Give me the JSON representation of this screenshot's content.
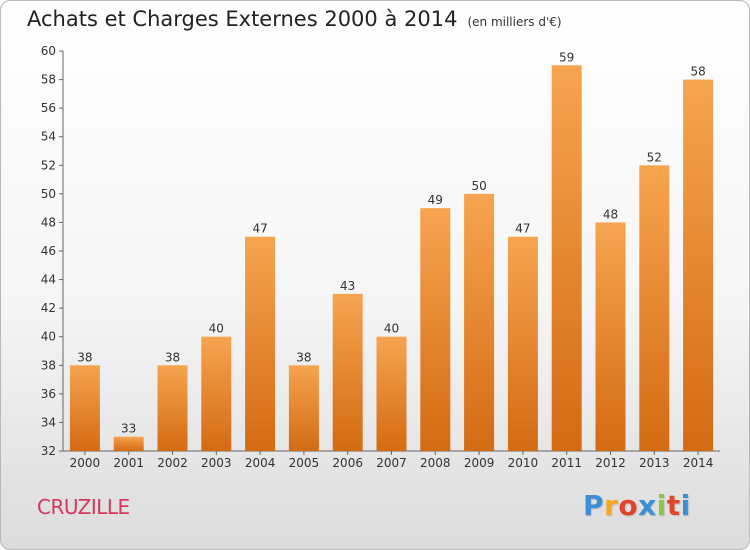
{
  "chart_data": {
    "type": "bar",
    "title": "Achats et Charges Externes 2000 à 2014",
    "subtitle": "(en milliers d'€)",
    "categories": [
      "2000",
      "2001",
      "2002",
      "2003",
      "2004",
      "2005",
      "2006",
      "2007",
      "2008",
      "2009",
      "2010",
      "2011",
      "2012",
      "2013",
      "2014"
    ],
    "values": [
      38,
      33,
      38,
      40,
      47,
      38,
      43,
      40,
      49,
      50,
      47,
      59,
      48,
      52,
      58
    ],
    "ylim": [
      32,
      60
    ],
    "yticks": [
      32,
      34,
      36,
      38,
      40,
      42,
      44,
      46,
      48,
      50,
      52,
      54,
      56,
      58,
      60
    ],
    "grid": false,
    "bar_color": "#ec8f32"
  },
  "commune": "CRUZILLE",
  "logo": {
    "letters": [
      "P",
      "r",
      "o",
      "x",
      "i",
      "t",
      "i"
    ],
    "colors": [
      "#3a8fd6",
      "#f5a623",
      "#e0452b",
      "#3a8fd6",
      "#8dc63f",
      "#e0452b",
      "#3a8fd6"
    ]
  }
}
